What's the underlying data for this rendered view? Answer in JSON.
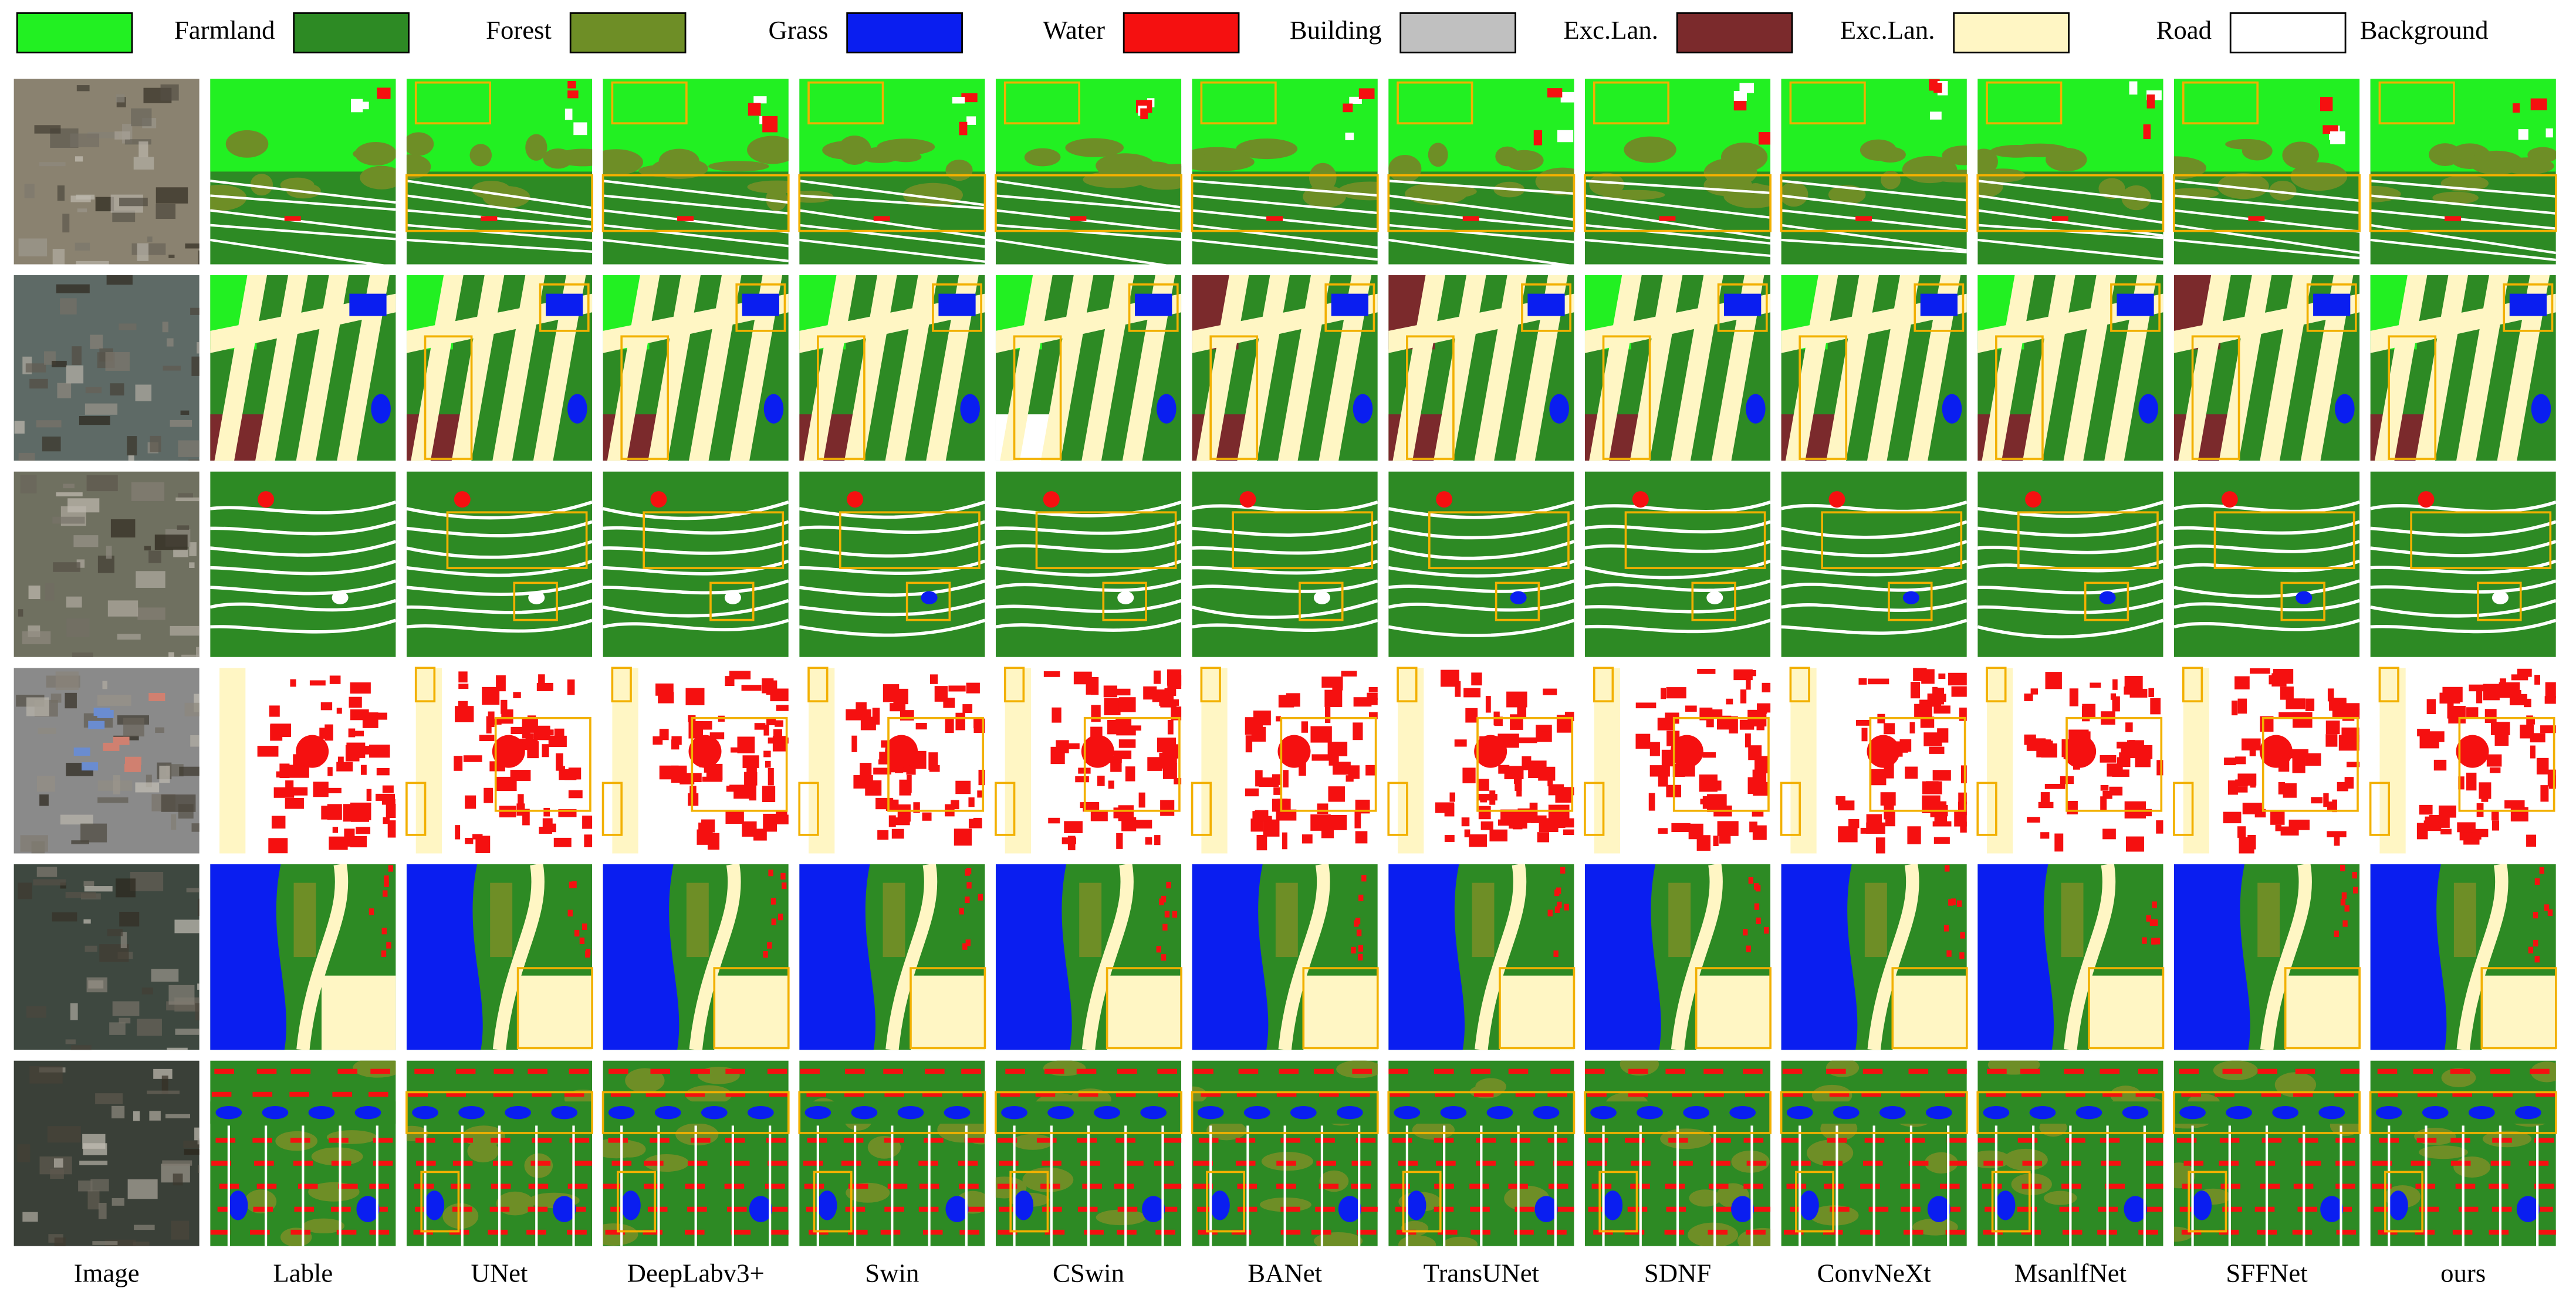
{
  "legend": [
    {
      "label": "Farmland",
      "color": "#22f022"
    },
    {
      "label": "Forest",
      "color": "#2d8a24"
    },
    {
      "label": "Grass",
      "color": "#6e8e26"
    },
    {
      "label": "Water",
      "color": "#0a1ef0"
    },
    {
      "label": "Building",
      "color": "#f51010"
    },
    {
      "label": "Exc.Lan.",
      "color": "#c0c0c0"
    },
    {
      "label": "Exc.Lan.",
      "color": "#7b2a2c"
    },
    {
      "label": "Road",
      "color": "#fff6c4"
    },
    {
      "label": "Background",
      "color": "#ffffff"
    }
  ],
  "columns": [
    "Image",
    "Lable",
    "UNet",
    "DeepLabv3+",
    "Swin",
    "CSwin",
    "BANet",
    "TransUNet",
    "SDNF",
    "ConvNeXt",
    "MsanlfNet",
    "SFFNet",
    "ours"
  ]
}
